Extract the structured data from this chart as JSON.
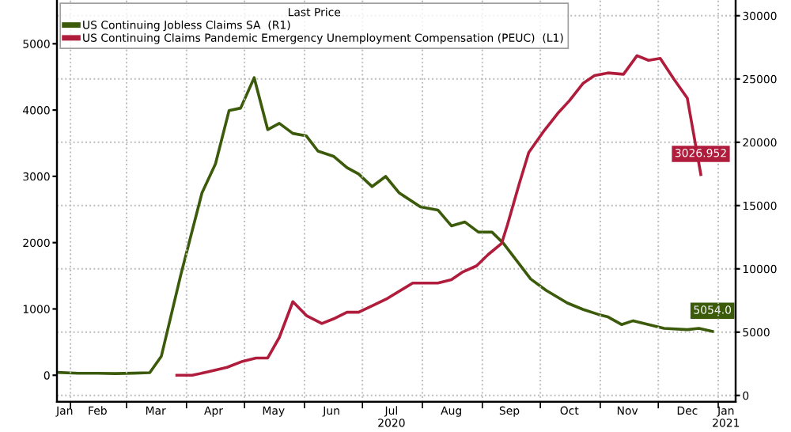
{
  "chart_data": {
    "type": "line",
    "legend_title": "Last Price",
    "legend": "top left",
    "grid": true,
    "line_style": "solid",
    "marker": "none",
    "xlim": [
      "2020-01-25",
      "2021-01-10"
    ],
    "xticks": [
      {
        "value": "2020-01-29",
        "label": "Jan"
      },
      {
        "value": "2020-02-15",
        "label": "Feb"
      },
      {
        "value": "2020-03-16",
        "label": "Mar"
      },
      {
        "value": "2020-04-15",
        "label": "Apr"
      },
      {
        "value": "2020-05-16",
        "label": "May"
      },
      {
        "value": "2020-06-15",
        "label": "Jun"
      },
      {
        "value": "2020-07-16",
        "label": "Jul\n2020"
      },
      {
        "value": "2020-08-16",
        "label": "Aug"
      },
      {
        "value": "2020-09-15",
        "label": "Sep"
      },
      {
        "value": "2020-10-16",
        "label": "Oct"
      },
      {
        "value": "2020-11-15",
        "label": "Nov"
      },
      {
        "value": "2020-12-16",
        "label": "Dec"
      },
      {
        "value": "2021-01-05",
        "label": "Jan\n2021"
      },
      {
        "value": "2020-02-01",
        "label": null
      },
      {
        "value": "2020-03-01",
        "label": null
      },
      {
        "value": "2020-04-01",
        "label": null
      },
      {
        "value": "2020-05-01",
        "label": null
      },
      {
        "value": "2020-06-01",
        "label": null
      },
      {
        "value": "2020-07-01",
        "label": null
      },
      {
        "value": "2020-08-01",
        "label": null
      },
      {
        "value": "2020-09-01",
        "label": null
      },
      {
        "value": "2020-10-01",
        "label": null
      },
      {
        "value": "2020-11-01",
        "label": null
      },
      {
        "value": "2020-12-01",
        "label": null
      },
      {
        "value": "2021-01-01",
        "label": null
      }
    ],
    "ylim": [
      -400,
      5660
    ],
    "yticks": [
      0,
      1000,
      2000,
      3000,
      4000,
      5000
    ],
    "y2lim": [
      -500,
      31240
    ],
    "y2ticks": [
      0,
      5000,
      10000,
      15000,
      20000,
      25000,
      30000
    ],
    "series": [
      {
        "name": "US Continuing Jobless Claims SA  (R1)",
        "color": "#3b5a0a",
        "axis": "y2",
        "x": [
          "2020-01-25",
          "2020-02-05",
          "2020-02-15",
          "2020-02-24",
          "2020-03-05",
          "2020-03-13",
          "2020-03-19",
          "2020-03-29",
          "2020-04-09",
          "2020-04-16",
          "2020-04-23",
          "2020-04-29",
          "2020-05-06",
          "2020-05-13",
          "2020-05-19",
          "2020-05-26",
          "2020-06-02",
          "2020-06-08",
          "2020-06-16",
          "2020-06-23",
          "2020-06-29",
          "2020-07-06",
          "2020-07-13",
          "2020-07-20",
          "2020-07-31",
          "2020-08-09",
          "2020-08-16",
          "2020-08-23",
          "2020-08-30",
          "2020-09-06",
          "2020-09-12",
          "2020-09-20",
          "2020-09-26",
          "2020-10-04",
          "2020-10-15",
          "2020-10-23",
          "2020-10-31",
          "2020-11-05",
          "2020-11-12",
          "2020-11-18",
          "2020-11-26",
          "2020-12-04",
          "2020-12-16",
          "2020-12-22",
          "2020-12-29"
        ],
        "values": [
          1820,
          1750,
          1750,
          1730,
          1760,
          1800,
          3100,
          9500,
          16000,
          18300,
          22500,
          22700,
          25100,
          21000,
          21500,
          20700,
          20500,
          19300,
          18900,
          18000,
          17500,
          16500,
          17300,
          16000,
          14900,
          14650,
          13400,
          13700,
          12900,
          12900,
          12000,
          10400,
          9200,
          8300,
          7300,
          6800,
          6400,
          6200,
          5600,
          5900,
          5600,
          5300,
          5200,
          5300,
          5054.0
        ],
        "value_labels": [
          null,
          null,
          null,
          null,
          null,
          null,
          null,
          null,
          null,
          null,
          null,
          null,
          null,
          null,
          null,
          null,
          null,
          null,
          null,
          null,
          null,
          null,
          null,
          null,
          null,
          null,
          null,
          null,
          null,
          null,
          null,
          null,
          null,
          null,
          null,
          null,
          null,
          null,
          null,
          null,
          null,
          null,
          null,
          null,
          "5054.0"
        ]
      },
      {
        "name": "US Continuing Claims Pandemic Emergency Unemployment Compensation (PEUC)  (L1)",
        "color": "#b01c3c",
        "axis": "y",
        "x": [
          "2020-03-27",
          "2020-04-04",
          "2020-04-12",
          "2020-04-22",
          "2020-04-30",
          "2020-05-07",
          "2020-05-13",
          "2020-05-19",
          "2020-05-26",
          "2020-06-02",
          "2020-06-10",
          "2020-06-16",
          "2020-06-23",
          "2020-06-29",
          "2020-07-07",
          "2020-07-14",
          "2020-07-27",
          "2020-08-09",
          "2020-08-16",
          "2020-08-22",
          "2020-08-29",
          "2020-09-04",
          "2020-09-11",
          "2020-09-14",
          "2020-09-20",
          "2020-09-25",
          "2020-10-03",
          "2020-10-10",
          "2020-10-16",
          "2020-10-23",
          "2020-10-29",
          "2020-11-05",
          "2020-11-13",
          "2020-11-20",
          "2020-11-26",
          "2020-12-02",
          "2020-12-09",
          "2020-12-16",
          "2020-12-23"
        ],
        "values": [
          0,
          0,
          50,
          120,
          210,
          260,
          260,
          570,
          1110,
          900,
          780,
          850,
          950,
          950,
          1060,
          1160,
          1390,
          1390,
          1440,
          1560,
          1650,
          1820,
          1990,
          2270,
          2880,
          3360,
          3690,
          3950,
          4140,
          4400,
          4520,
          4560,
          4540,
          4820,
          4750,
          4780,
          4470,
          4180,
          3026.952
        ],
        "value_labels": [
          null,
          null,
          null,
          null,
          null,
          null,
          null,
          null,
          null,
          null,
          null,
          null,
          null,
          null,
          null,
          null,
          null,
          null,
          null,
          null,
          null,
          null,
          null,
          null,
          null,
          null,
          null,
          null,
          null,
          null,
          null,
          null,
          null,
          null,
          null,
          null,
          null,
          null,
          "3026.952"
        ]
      }
    ]
  }
}
